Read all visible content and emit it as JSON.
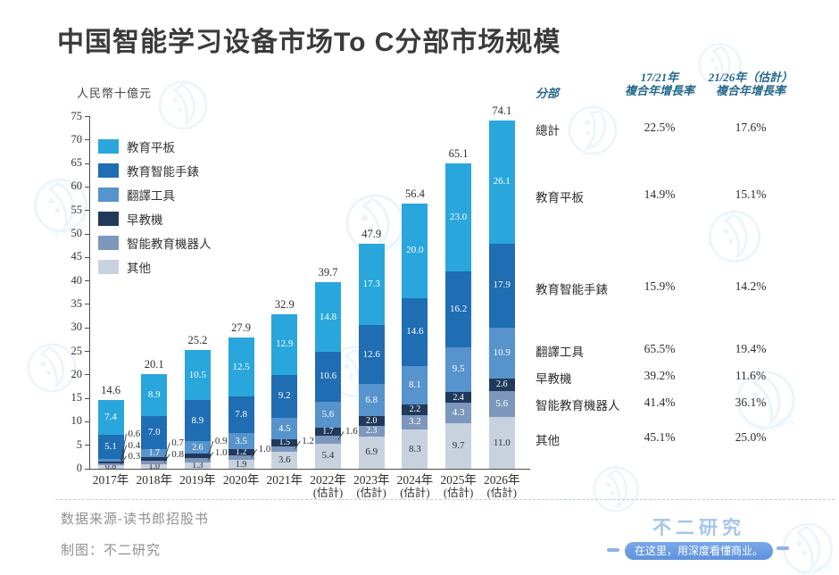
{
  "title": "中国智能学习设备市场To C分部市场规模",
  "chart_data": {
    "type": "bar",
    "stacked": true,
    "unit_label": "人民幣十億元",
    "ylim": [
      0,
      75
    ],
    "ytick_step": 5,
    "grid": false,
    "legend_position": "upper-left",
    "categories": [
      {
        "label": "2017年",
        "sublabel": ""
      },
      {
        "label": "2018年",
        "sublabel": ""
      },
      {
        "label": "2019年",
        "sublabel": ""
      },
      {
        "label": "2020年",
        "sublabel": ""
      },
      {
        "label": "2021年",
        "sublabel": ""
      },
      {
        "label": "2022年",
        "sublabel": "(估計)"
      },
      {
        "label": "2023年",
        "sublabel": "(估計)"
      },
      {
        "label": "2024年",
        "sublabel": "(估計)"
      },
      {
        "label": "2025年",
        "sublabel": "(估計)"
      },
      {
        "label": "2026年",
        "sublabel": "(估計)"
      }
    ],
    "series": [
      {
        "key": "qita",
        "name": "其他",
        "color": "#C8D2DF",
        "label_color": "#2f2f2f",
        "values": [
          0.8,
          1.0,
          1.3,
          1.9,
          3.6,
          5.4,
          6.9,
          8.3,
          9.7,
          11.0
        ]
      },
      {
        "key": "robot",
        "name": "智能教育機器人",
        "color": "#7D97BC",
        "label_color": "#ffffff",
        "values": [
          0.3,
          0.8,
          1.0,
          1.0,
          1.2,
          1.6,
          2.3,
          3.2,
          4.3,
          5.6
        ]
      },
      {
        "key": "zaojiao",
        "name": "早教機",
        "color": "#21395B",
        "label_color": "#ffffff",
        "values": [
          0.4,
          0.7,
          0.9,
          1.2,
          1.5,
          1.7,
          2.0,
          2.2,
          2.4,
          2.6
        ]
      },
      {
        "key": "fanyi",
        "name": "翻譯工具",
        "color": "#5793CC",
        "label_color": "#ffffff",
        "values": [
          0.6,
          1.7,
          2.6,
          3.5,
          4.5,
          5.6,
          6.8,
          8.1,
          9.5,
          10.9
        ]
      },
      {
        "key": "watch",
        "name": "教育智能手錶",
        "color": "#1F6DB3",
        "label_color": "#ffffff",
        "values": [
          5.1,
          7.0,
          8.9,
          7.8,
          9.2,
          10.6,
          12.6,
          14.6,
          16.2,
          17.9
        ]
      },
      {
        "key": "pad",
        "name": "教育平板",
        "color": "#29A7DC",
        "label_color": "#ffffff",
        "values": [
          7.4,
          8.9,
          10.5,
          12.5,
          12.9,
          14.8,
          17.3,
          20.0,
          23.0,
          26.1
        ]
      }
    ],
    "totals": [
      14.6,
      20.1,
      25.2,
      27.9,
      32.9,
      39.7,
      47.9,
      56.4,
      65.1,
      74.1
    ],
    "callouts": [
      [
        "fanyi",
        "zaojiao",
        "robot"
      ],
      [
        "zaojiao",
        "robot"
      ],
      [
        "zaojiao",
        "robot"
      ],
      [
        "robot"
      ],
      [
        "robot"
      ],
      [
        "robot"
      ],
      [],
      [],
      [],
      []
    ]
  },
  "table": {
    "headers": {
      "col1": "分部",
      "col2_line1": "17/21年",
      "col2_line2": "複合年增長率",
      "col3_line1": "21/26年（估計）",
      "col3_line2": "複合年增長率"
    },
    "rows": [
      {
        "name": "總計",
        "cagr_17_21": "22.5%",
        "cagr_21_26": "17.6%"
      },
      {
        "name": "教育平板",
        "cagr_17_21": "14.9%",
        "cagr_21_26": "15.1%"
      },
      {
        "name": "教育智能手錶",
        "cagr_17_21": "15.9%",
        "cagr_21_26": "14.2%"
      },
      {
        "name": "翻譯工具",
        "cagr_17_21": "65.5%",
        "cagr_21_26": "19.4%"
      },
      {
        "name": "早教機",
        "cagr_17_21": "39.2%",
        "cagr_21_26": "11.6%"
      },
      {
        "name": "智能教育機器人",
        "cagr_17_21": "41.4%",
        "cagr_21_26": "36.1%"
      },
      {
        "name": "其他",
        "cagr_17_21": "45.1%",
        "cagr_21_26": "25.0%"
      }
    ]
  },
  "footer": {
    "source": "数据来源-读书郎招股书",
    "credit": "制图：不二研究",
    "brand": "不二研究",
    "slogan": "在这里，用深度看懂商业。"
  },
  "colors": {
    "title": "#3b3b3b",
    "table_header": "#23688C",
    "brand_text": "#a5c6ea",
    "ribbon_blue": "#6c9be2",
    "watermark": "#d9ecf8",
    "axis": "#4d4d4d"
  }
}
